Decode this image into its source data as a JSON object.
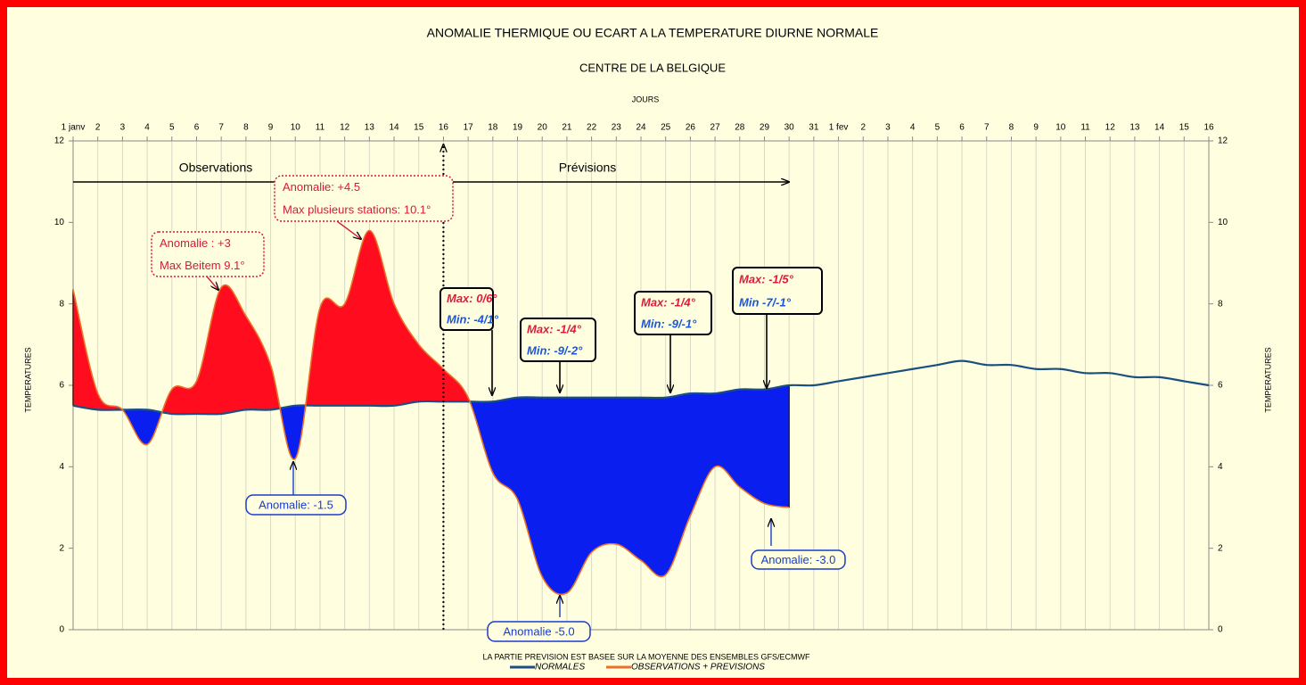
{
  "chart_data": {
    "type": "line",
    "title": "ANOMALIE THERMIQUE OU ECART A LA TEMPERATURE DIURNE NORMALE",
    "subtitle": "CENTRE DE LA BELGIQUE",
    "x_label": "JOURS",
    "y_label": "TEMPERATURES",
    "y2_label": "TEMPERATURES",
    "footnote": "LA PARTIE PREVISION EST BASEE SUR LA MOYENNE DES ENSEMBLES GFS/ECMWF",
    "categories": [
      "1 janv",
      "2",
      "3",
      "4",
      "5",
      "6",
      "7",
      "8",
      "9",
      "10",
      "11",
      "12",
      "13",
      "14",
      "15",
      "16",
      "17",
      "18",
      "19",
      "20",
      "21",
      "22",
      "23",
      "24",
      "25",
      "26",
      "27",
      "28",
      "29",
      "30",
      "31",
      "1 fev",
      "2",
      "3",
      "4",
      "5",
      "6",
      "7",
      "8",
      "9",
      "10",
      "11",
      "12",
      "13",
      "14",
      "15",
      "16"
    ],
    "series": [
      {
        "name": "NORMALES",
        "color": "#1b4f80",
        "values": [
          5.5,
          5.4,
          5.4,
          5.4,
          5.3,
          5.3,
          5.3,
          5.4,
          5.4,
          5.5,
          5.5,
          5.5,
          5.5,
          5.5,
          5.6,
          5.6,
          5.6,
          5.6,
          5.7,
          5.7,
          5.7,
          5.7,
          5.7,
          5.7,
          5.7,
          5.8,
          5.8,
          5.9,
          5.9,
          6.0,
          6.0,
          6.1,
          6.2,
          6.3,
          6.4,
          6.5,
          6.6,
          6.5,
          6.5,
          6.4,
          6.4,
          6.3,
          6.3,
          6.2,
          6.2,
          6.1,
          6.0
        ]
      },
      {
        "name": "OBSERVATIONS + PREVISIONS",
        "color": "#e8702a",
        "values": [
          8.35,
          5.8,
          5.4,
          4.55,
          5.9,
          6.1,
          8.4,
          7.7,
          6.5,
          4.2,
          7.9,
          8.0,
          9.8,
          8.0,
          7.0,
          6.4,
          5.7,
          3.85,
          3.2,
          1.3,
          0.9,
          1.9,
          2.1,
          1.7,
          1.35,
          2.8,
          4.0,
          3.5,
          3.1,
          3.0,
          null,
          null,
          null,
          null,
          null,
          null,
          null,
          null,
          null,
          null,
          null,
          null,
          null,
          null,
          null,
          null,
          null
        ]
      }
    ],
    "above_color": "#ff0d1e",
    "below_color": "#0a1ef0",
    "ylim": [
      0,
      12
    ],
    "yticks": [
      0,
      2,
      4,
      6,
      8,
      10,
      12
    ],
    "y2lim": [
      0,
      12
    ],
    "y2ticks": [
      0,
      2,
      4,
      6,
      8,
      10,
      12
    ],
    "grid": "x",
    "period_labels": [
      "Observations",
      "Prévisions"
    ],
    "annotations": [
      {
        "lines": [
          "Anomalie : +3",
          "Max Beitem 9.1°"
        ],
        "color": "#d41a3a"
      },
      {
        "lines": [
          "Anomalie: +4.5",
          "Max plusieurs stations: 10.1°"
        ],
        "color": "#d41a3a"
      },
      {
        "lines": [
          "Anomalie: -1.5"
        ],
        "color": "#1a3cc8"
      },
      {
        "lines": [
          "Anomalie -5.0"
        ],
        "color": "#1a3cc8"
      },
      {
        "lines": [
          "Anomalie: -3.0"
        ],
        "color": "#1a3cc8"
      },
      {
        "lines": [
          "Max: 0/6°",
          "Min: -4/1°"
        ],
        "color": "#000000"
      },
      {
        "lines": [
          "Max: -1/4°",
          "Min: -9/-2°"
        ],
        "color": "#000000"
      },
      {
        "lines": [
          "Max: -1/4°",
          "Min: -9/-1°"
        ],
        "color": "#000000"
      },
      {
        "lines": [
          "Max: -1/5°",
          "Min -7/-1°"
        ],
        "color": "#000000"
      }
    ]
  }
}
